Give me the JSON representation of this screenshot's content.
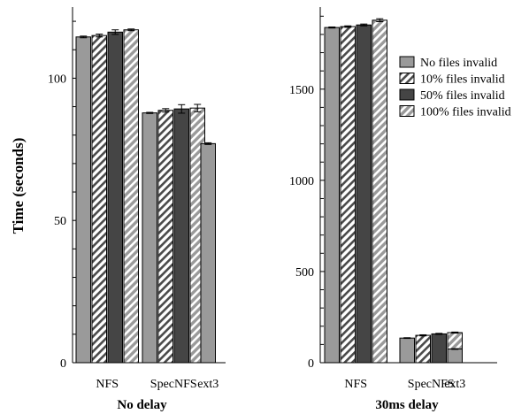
{
  "ylabel": "Time (seconds)",
  "legend": [
    "No files invalid",
    "10% files invalid",
    "50% files invalid",
    "100% files invalid"
  ],
  "colors": {
    "no_invalid": "#9a9a9a",
    "ten_invalid": "#ffffff",
    "fifty_invalid": "#454545",
    "hundred_invalid": "#9a9a9a",
    "stripe": "#4a4a4a"
  },
  "chart_data": [
    {
      "type": "bar",
      "xlabel": "No delay",
      "categories": [
        "NFS",
        "SpecNFS",
        "ext3"
      ],
      "ylim": [
        0,
        125
      ],
      "yticks": [
        0,
        50,
        100
      ],
      "series": [
        {
          "name": "No files invalid",
          "values": [
            114.5,
            87.8,
            77.0
          ],
          "errors": [
            0.3,
            0.2,
            0.3
          ]
        },
        {
          "name": "10% files invalid",
          "values": [
            115.0,
            88.7,
            null
          ],
          "errors": [
            0.5,
            0.6,
            null
          ]
        },
        {
          "name": "50% files invalid",
          "values": [
            116.2,
            89.2,
            null
          ],
          "errors": [
            0.8,
            1.5,
            null
          ]
        },
        {
          "name": "100% files invalid",
          "values": [
            117.0,
            89.5,
            null
          ],
          "errors": [
            0.3,
            1.3,
            null
          ]
        }
      ]
    },
    {
      "type": "bar",
      "xlabel": "30ms delay",
      "categories": [
        "NFS",
        "SpecNFS",
        "ext3"
      ],
      "ylim": [
        0,
        1950
      ],
      "yticks": [
        0,
        500,
        1000,
        1500
      ],
      "series": [
        {
          "name": "No files invalid",
          "values": [
            1838,
            135,
            75
          ],
          "errors": [
            3,
            2,
            2
          ]
        },
        {
          "name": "10% files invalid",
          "values": [
            1843,
            150,
            null
          ],
          "errors": [
            4,
            3,
            null
          ]
        },
        {
          "name": "50% files invalid",
          "values": [
            1852,
            158,
            null
          ],
          "errors": [
            5,
            3,
            null
          ]
        },
        {
          "name": "100% files invalid",
          "values": [
            1878,
            165,
            null
          ],
          "errors": [
            8,
            3,
            null
          ]
        }
      ]
    }
  ]
}
